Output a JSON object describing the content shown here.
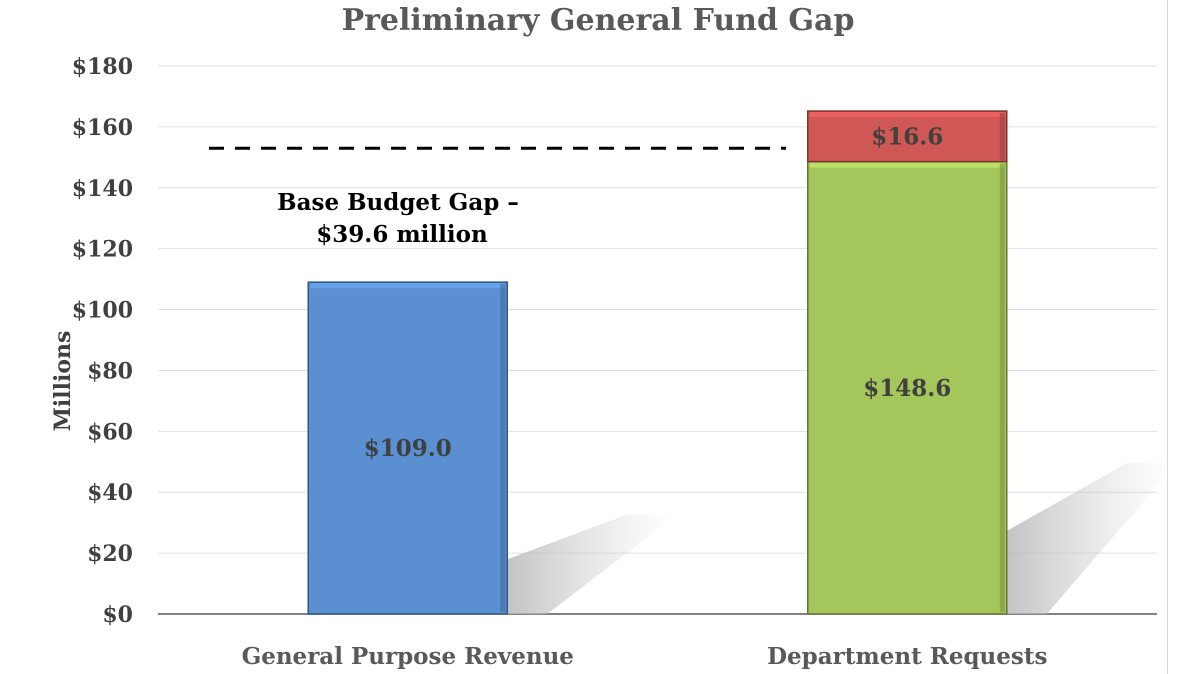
{
  "chart_data": {
    "type": "bar",
    "stacked": true,
    "title": "Preliminary General Fund Gap",
    "ylabel": "Millions",
    "xlabel": "",
    "ylim": [
      0,
      180
    ],
    "ytick_step": 20,
    "ytick_labels": [
      "$0",
      "$20",
      "$40",
      "$60",
      "$80",
      "$100",
      "$120",
      "$140",
      "$160",
      "$180"
    ],
    "categories": [
      "General Purpose Revenue",
      "Department Requests"
    ],
    "bars": [
      {
        "category": "General Purpose Revenue",
        "segments": [
          {
            "value": 109.0,
            "label": "$109.0",
            "color": "#5a8fd1"
          }
        ]
      },
      {
        "category": "Department Requests",
        "segments": [
          {
            "value": 148.6,
            "label": "$148.6",
            "color": "#a4c65b"
          },
          {
            "value": 16.6,
            "label": "$16.6",
            "color": "#cf5754"
          }
        ]
      }
    ],
    "reference_line": {
      "value": 153,
      "style": "dashed",
      "color": "#000000"
    },
    "annotation": [
      "Base Budget Gap –",
      "$39.6 million"
    ],
    "grid": true,
    "legend": "none"
  }
}
